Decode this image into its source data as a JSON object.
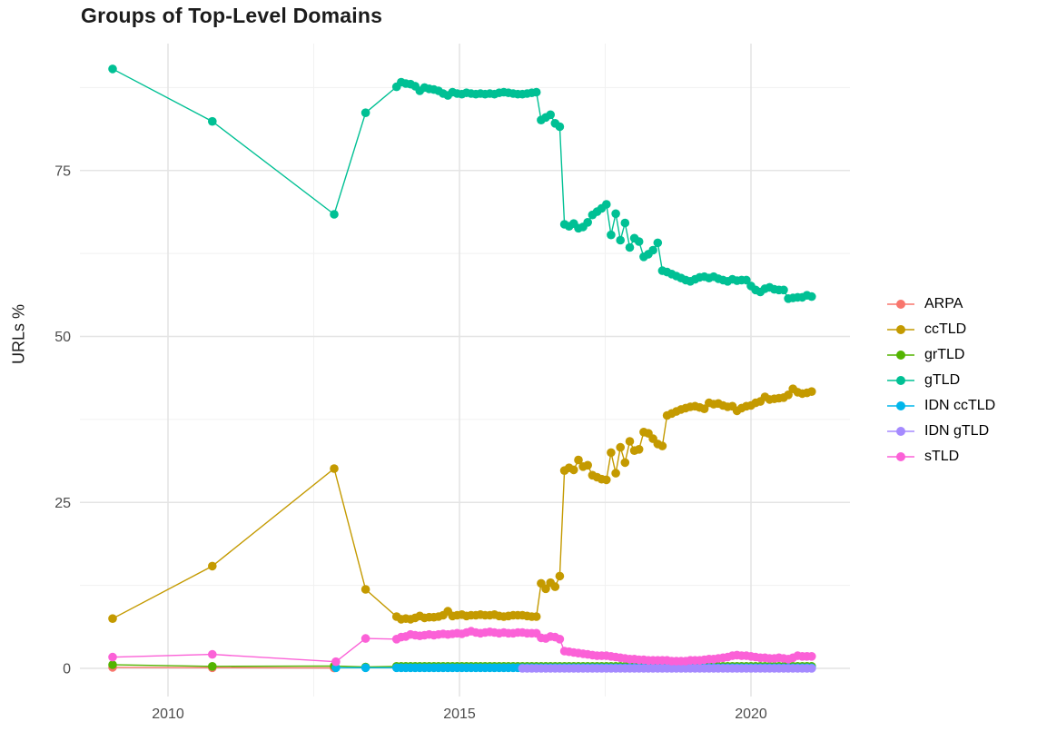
{
  "chart_data": {
    "type": "line",
    "title": "Groups of Top-Level Domains",
    "xlabel": "",
    "ylabel": "URLs %",
    "xlim": [
      2008.5,
      2021.7
    ],
    "ylim": [
      -4,
      94
    ],
    "grid": true,
    "legend_position": "right",
    "x_ticks": [
      2010,
      2015,
      2020
    ],
    "x_minor_gridlines": [
      2012.5,
      2017.5
    ],
    "y_ticks": [
      0,
      25,
      50,
      75
    ],
    "y_minor_gridlines": [
      12.5,
      37.5,
      62.5,
      87.5
    ],
    "series": [
      {
        "name": "ARPA",
        "color": "#F8766D",
        "sparse": [
          [
            2009.05,
            0.15
          ],
          [
            2010.76,
            0.1
          ],
          [
            2012.85,
            0.05
          ]
        ]
      },
      {
        "name": "ccTLD",
        "color": "#C49A00",
        "sparse": [
          [
            2009.05,
            7.5
          ],
          [
            2010.76,
            15.4
          ],
          [
            2012.85,
            30.1
          ],
          [
            2013.39,
            11.9
          ]
        ],
        "dense": {
          "x0": 2013.92,
          "step": 0.08,
          "y": [
            7.8,
            7.4,
            7.5,
            7.4,
            7.6,
            7.9,
            7.6,
            7.7,
            7.7,
            7.8,
            8.0,
            8.6,
            7.9,
            8.0,
            8.1,
            7.9,
            8.0,
            8.0,
            8.1,
            8.0,
            8.0,
            8.1,
            7.9,
            7.8,
            7.9,
            8.0,
            8.0,
            8.0,
            7.9,
            7.8,
            7.8,
            12.8,
            12.0,
            12.9,
            12.3,
            13.9,
            29.8,
            30.2,
            29.9,
            31.4,
            30.4,
            30.6,
            29.1,
            28.8,
            28.5,
            28.4,
            32.5,
            29.4,
            33.3,
            31.0,
            34.2,
            32.8,
            33.0,
            35.6,
            35.4,
            34.6,
            33.8,
            33.5,
            38.1,
            38.4,
            38.7,
            39.0,
            39.2,
            39.4,
            39.5,
            39.3,
            39.1,
            40.0,
            39.8,
            39.9,
            39.6,
            39.4,
            39.5,
            38.8,
            39.2,
            39.5,
            39.6,
            40.0,
            40.2,
            40.9,
            40.5,
            40.6,
            40.7,
            40.8,
            41.2,
            42.1,
            41.6,
            41.4,
            41.5,
            41.7
          ]
        }
      },
      {
        "name": "grTLD",
        "color": "#53B400",
        "sparse": [
          [
            2009.05,
            0.55
          ],
          [
            2010.76,
            0.3
          ],
          [
            2012.85,
            0.35
          ],
          [
            2013.39,
            0.2
          ]
        ],
        "dense": {
          "x0": 2013.92,
          "step": 0.08,
          "n": 90,
          "const": 0.3
        }
      },
      {
        "name": "gTLD",
        "color": "#00C094",
        "sparse": [
          [
            2009.05,
            90.3
          ],
          [
            2010.76,
            82.4
          ],
          [
            2012.85,
            68.4
          ],
          [
            2013.39,
            83.7
          ]
        ],
        "dense": {
          "x0": 2013.92,
          "step": 0.08,
          "y": [
            87.6,
            88.3,
            88.1,
            88.0,
            87.7,
            87.0,
            87.5,
            87.3,
            87.2,
            87.0,
            86.6,
            86.3,
            86.8,
            86.6,
            86.5,
            86.7,
            86.6,
            86.5,
            86.6,
            86.5,
            86.6,
            86.5,
            86.7,
            86.8,
            86.7,
            86.6,
            86.5,
            86.5,
            86.6,
            86.7,
            86.8,
            82.6,
            83.0,
            83.4,
            82.1,
            81.6,
            66.9,
            66.6,
            67.0,
            66.3,
            66.5,
            67.2,
            68.3,
            68.8,
            69.3,
            69.9,
            65.3,
            68.5,
            64.5,
            67.1,
            63.4,
            64.8,
            64.3,
            62.0,
            62.4,
            63.0,
            64.1,
            59.9,
            59.7,
            59.4,
            59.1,
            58.8,
            58.5,
            58.3,
            58.6,
            58.9,
            59.0,
            58.8,
            59.0,
            58.7,
            58.5,
            58.3,
            58.6,
            58.4,
            58.5,
            58.5,
            57.6,
            57.0,
            56.7,
            57.2,
            57.4,
            57.1,
            57.0,
            57.0,
            55.7,
            55.8,
            55.9,
            55.9,
            56.2,
            56.0
          ]
        }
      },
      {
        "name": "IDN ccTLD",
        "color": "#00B6EB",
        "sparse": [
          [
            2012.88,
            0.1
          ],
          [
            2013.39,
            0.1
          ]
        ],
        "dense": {
          "x0": 2013.92,
          "step": 0.08,
          "n": 90,
          "const": 0.1
        }
      },
      {
        "name": "IDN gTLD",
        "color": "#A58AFF",
        "dense": {
          "x0": 2016.08,
          "step": 0.08,
          "n": 63,
          "const": 0.0
        }
      },
      {
        "name": "sTLD",
        "color": "#FB61D7",
        "sparse": [
          [
            2009.05,
            1.7
          ],
          [
            2010.76,
            2.1
          ],
          [
            2012.88,
            1.0
          ],
          [
            2013.39,
            4.5
          ]
        ],
        "dense": {
          "x0": 2013.92,
          "step": 0.08,
          "y": [
            4.4,
            4.7,
            4.8,
            5.1,
            5.0,
            4.9,
            5.0,
            5.1,
            5.0,
            5.1,
            5.2,
            5.1,
            5.2,
            5.3,
            5.2,
            5.4,
            5.6,
            5.4,
            5.3,
            5.4,
            5.5,
            5.4,
            5.3,
            5.4,
            5.3,
            5.3,
            5.4,
            5.4,
            5.3,
            5.3,
            5.3,
            4.6,
            4.5,
            4.8,
            4.7,
            4.4,
            2.6,
            2.5,
            2.4,
            2.3,
            2.2,
            2.1,
            2.0,
            1.9,
            1.9,
            1.9,
            1.8,
            1.7,
            1.6,
            1.5,
            1.4,
            1.4,
            1.3,
            1.3,
            1.2,
            1.2,
            1.2,
            1.2,
            1.2,
            1.1,
            1.1,
            1.1,
            1.1,
            1.2,
            1.2,
            1.2,
            1.3,
            1.4,
            1.4,
            1.5,
            1.6,
            1.7,
            1.9,
            2.0,
            1.9,
            1.9,
            1.8,
            1.7,
            1.6,
            1.6,
            1.5,
            1.5,
            1.6,
            1.5,
            1.4,
            1.6,
            1.9,
            1.8,
            1.8,
            1.8
          ]
        }
      }
    ]
  }
}
